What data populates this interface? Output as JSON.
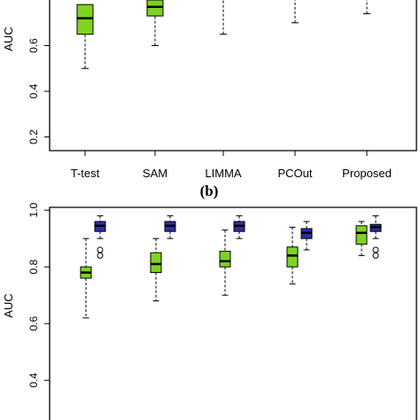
{
  "chart_data": [
    {
      "type": "boxplot",
      "ylabel": "AUC",
      "categories": [
        "T-test",
        "SAM",
        "LIMMA",
        "PCOut",
        "Proposed"
      ],
      "yticks": [
        "0.2",
        "0.4",
        "0.6"
      ],
      "ylim": [
        0.14,
        0.8
      ],
      "boxes": [
        {
          "category": "T-test",
          "color": "#7ed321",
          "min": 0.5,
          "q1": 0.65,
          "median": 0.72,
          "q3": 0.78,
          "max": 0.8
        },
        {
          "category": "SAM",
          "color": "#7ed321",
          "min": 0.6,
          "q1": 0.73,
          "median": 0.77,
          "q3": 0.8,
          "max": 0.8
        },
        {
          "category": "LIMMA",
          "color": "#7ed321",
          "min": 0.65,
          "q1": 0.8,
          "median": 0.8,
          "q3": 0.8,
          "max": 0.8
        },
        {
          "category": "PCOut",
          "color": "#7ed321",
          "min": 0.7,
          "q1": 0.8,
          "median": 0.8,
          "q3": 0.8,
          "max": 0.8
        },
        {
          "category": "Proposed",
          "color": "#7ed321",
          "min": 0.74,
          "q1": 0.8,
          "median": 0.8,
          "q3": 0.8,
          "max": 0.8
        }
      ]
    },
    {
      "type": "boxplot",
      "panel_label": "(b)",
      "ylabel": "AUC",
      "yticks": [
        "0.4",
        "0.6",
        "0.8",
        "1.0"
      ],
      "ylim": [
        0.26,
        1.01
      ],
      "groups": [
        "T-test",
        "SAM",
        "LIMMA",
        "PCOut",
        "Proposed"
      ],
      "series_colors": [
        "#7ed321",
        "#2b2fa8"
      ],
      "boxes": [
        {
          "group": "T-test",
          "series": 0,
          "min": 0.62,
          "q1": 0.76,
          "median": 0.78,
          "q3": 0.8,
          "max": 0.9,
          "outliers": []
        },
        {
          "group": "T-test",
          "series": 1,
          "min": 0.9,
          "q1": 0.925,
          "median": 0.945,
          "q3": 0.96,
          "max": 0.98,
          "outliers": [
            0.86,
            0.84
          ]
        },
        {
          "group": "SAM",
          "series": 0,
          "min": 0.68,
          "q1": 0.78,
          "median": 0.81,
          "q3": 0.85,
          "max": 0.9,
          "outliers": []
        },
        {
          "group": "SAM",
          "series": 1,
          "min": 0.9,
          "q1": 0.925,
          "median": 0.945,
          "q3": 0.96,
          "max": 0.98,
          "outliers": []
        },
        {
          "group": "LIMMA",
          "series": 0,
          "min": 0.7,
          "q1": 0.8,
          "median": 0.82,
          "q3": 0.855,
          "max": 0.93,
          "outliers": []
        },
        {
          "group": "LIMMA",
          "series": 1,
          "min": 0.9,
          "q1": 0.925,
          "median": 0.945,
          "q3": 0.96,
          "max": 0.98,
          "outliers": []
        },
        {
          "group": "PCOut",
          "series": 0,
          "min": 0.74,
          "q1": 0.8,
          "median": 0.84,
          "q3": 0.87,
          "max": 0.94,
          "outliers": []
        },
        {
          "group": "PCOut",
          "series": 1,
          "min": 0.86,
          "q1": 0.9,
          "median": 0.92,
          "q3": 0.935,
          "max": 0.96,
          "outliers": []
        },
        {
          "group": "Proposed",
          "series": 0,
          "min": 0.84,
          "q1": 0.88,
          "median": 0.92,
          "q3": 0.945,
          "max": 0.96,
          "outliers": []
        },
        {
          "group": "Proposed",
          "series": 1,
          "min": 0.9,
          "q1": 0.925,
          "median": 0.94,
          "q3": 0.95,
          "max": 0.98,
          "outliers": [
            0.86,
            0.84
          ]
        }
      ]
    }
  ]
}
